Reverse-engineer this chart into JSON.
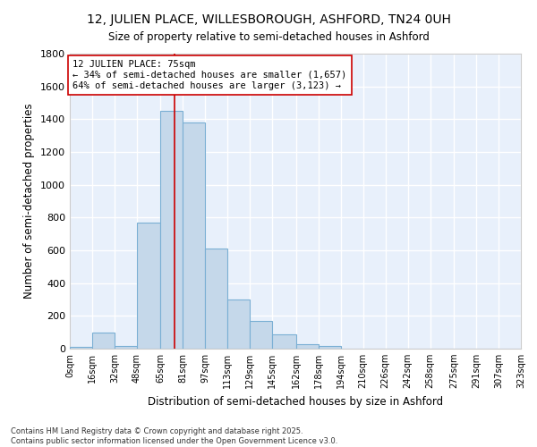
{
  "title": "12, JULIEN PLACE, WILLESBOROUGH, ASHFORD, TN24 0UH",
  "subtitle": "Size of property relative to semi-detached houses in Ashford",
  "xlabel": "Distribution of semi-detached houses by size in Ashford",
  "ylabel": "Number of semi-detached properties",
  "bar_color": "#c5d8ea",
  "bar_edge_color": "#7aafd4",
  "background_color": "#e8f0fb",
  "grid_color": "#ffffff",
  "bin_edges": [
    0,
    16,
    32,
    48,
    65,
    81,
    97,
    113,
    129,
    145,
    162,
    178,
    194,
    210,
    226,
    242,
    258,
    275,
    291,
    307,
    323
  ],
  "bin_labels": [
    "0sqm",
    "16sqm",
    "32sqm",
    "48sqm",
    "65sqm",
    "81sqm",
    "97sqm",
    "113sqm",
    "129sqm",
    "145sqm",
    "162sqm",
    "178sqm",
    "194sqm",
    "210sqm",
    "226sqm",
    "242sqm",
    "258sqm",
    "275sqm",
    "291sqm",
    "307sqm",
    "323sqm"
  ],
  "counts": [
    10,
    100,
    15,
    770,
    1450,
    1380,
    610,
    300,
    170,
    85,
    30,
    18,
    0,
    0,
    0,
    0,
    0,
    0,
    0,
    0
  ],
  "vline_x": 75,
  "vline_color": "#cc0000",
  "annotation_text": "12 JULIEN PLACE: 75sqm\n← 34% of semi-detached houses are smaller (1,657)\n64% of semi-detached houses are larger (3,123) →",
  "annotation_box_color": "#ffffff",
  "annotation_box_edge": "#cc0000",
  "footer_text": "Contains HM Land Registry data © Crown copyright and database right 2025.\nContains public sector information licensed under the Open Government Licence v3.0.",
  "ylim": [
    0,
    1800
  ],
  "yticks": [
    0,
    200,
    400,
    600,
    800,
    1000,
    1200,
    1400,
    1600,
    1800
  ]
}
